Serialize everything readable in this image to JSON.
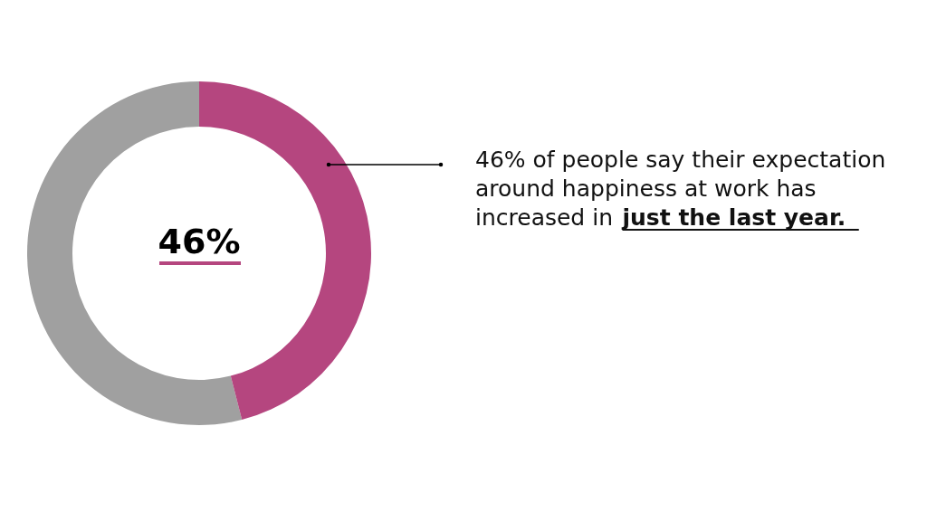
{
  "chart_data": {
    "type": "donut",
    "categories": [
      null,
      null
    ],
    "values": [
      46,
      54
    ],
    "colors": [
      "#b5467f",
      "#a0a0a0"
    ],
    "annotations": [
      "46% of people say their expectation around happiness at work has increased in",
      "just the last year.",
      "46%"
    ]
  }
}
